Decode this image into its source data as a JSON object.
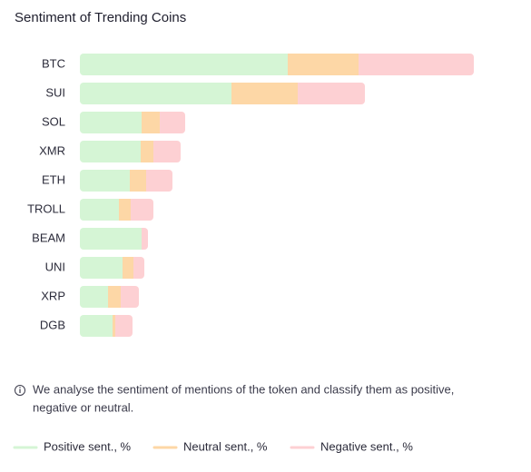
{
  "chart_data": {
    "type": "bar",
    "horizontal": true,
    "stacked": true,
    "title": "Sentiment of Trending Coins",
    "note": [
      "We analyse the sentiment of mentions of the token and classify them as positive,",
      "negative or neutral."
    ],
    "categories": [
      "BTC",
      "SUI",
      "SOL",
      "XMR",
      "ETH",
      "TROLL",
      "BEAM",
      "UNI",
      "XRP",
      "DGB"
    ],
    "xlim": [
      0,
      440
    ],
    "series": [
      {
        "name": "Positive sent., %",
        "color": "#d5f5d5",
        "values": [
          229,
          167,
          68,
          67,
          55,
          43,
          68,
          47,
          31,
          36
        ]
      },
      {
        "name": "Neutral sent., %",
        "color": "#fdd7a6",
        "values": [
          78,
          73,
          20,
          14,
          18,
          13,
          0,
          12,
          14,
          3
        ]
      },
      {
        "name": "Negative sent., %",
        "color": "#fdd0d3",
        "values": [
          127,
          74,
          28,
          30,
          29,
          25,
          7,
          12,
          20,
          19
        ]
      }
    ]
  }
}
